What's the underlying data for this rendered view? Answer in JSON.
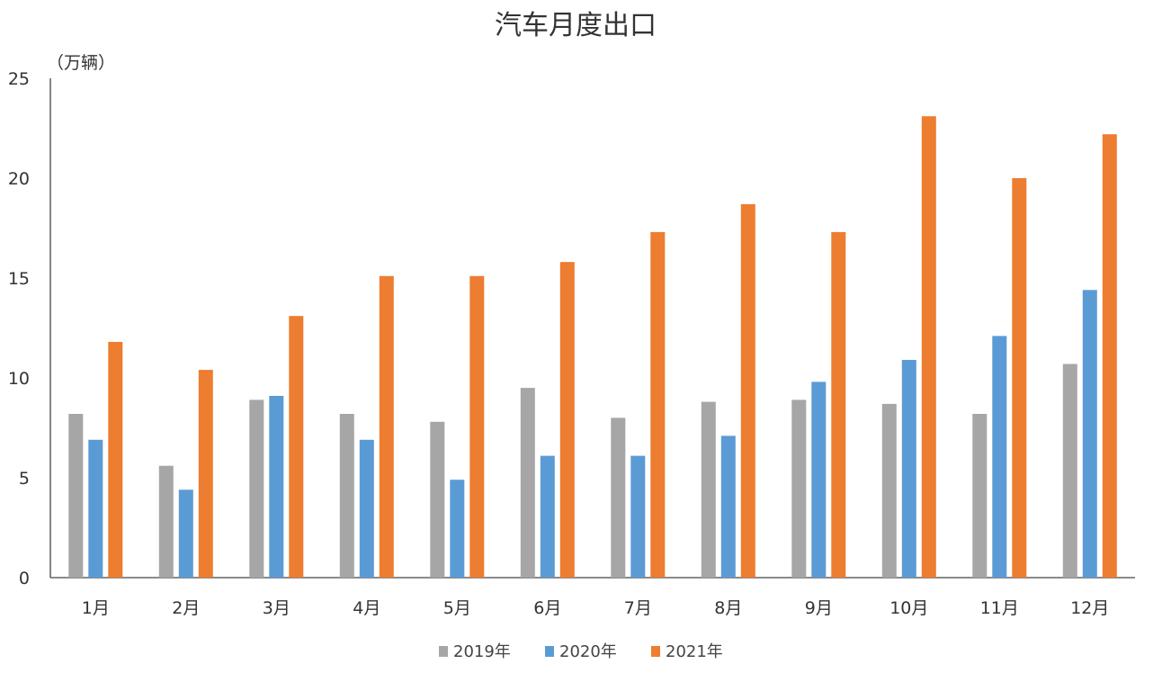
{
  "chart_data": {
    "type": "bar",
    "title": "汽车月度出口",
    "unit_label": "（万辆）",
    "xlabel": "",
    "ylabel": "",
    "categories": [
      "1月",
      "2月",
      "3月",
      "4月",
      "5月",
      "6月",
      "7月",
      "8月",
      "9月",
      "10月",
      "11月",
      "12月"
    ],
    "ylim": [
      0,
      25
    ],
    "yticks": [
      0,
      5,
      10,
      15,
      20,
      25
    ],
    "grid": false,
    "legend_position": "bottom-center",
    "series": [
      {
        "name": "2019年",
        "color": "#a6a6a6",
        "values": [
          8.2,
          5.6,
          8.9,
          8.2,
          7.8,
          9.5,
          8.0,
          8.8,
          8.9,
          8.7,
          8.2,
          10.7
        ]
      },
      {
        "name": "2020年",
        "color": "#5b9bd5",
        "values": [
          6.9,
          4.4,
          9.1,
          6.9,
          4.9,
          6.1,
          6.1,
          7.1,
          9.8,
          10.9,
          12.1,
          14.4
        ]
      },
      {
        "name": "2021年",
        "color": "#ed7d31",
        "values": [
          11.8,
          10.4,
          13.1,
          15.1,
          15.1,
          15.8,
          17.3,
          18.7,
          17.3,
          23.1,
          20.0,
          22.2
        ]
      }
    ]
  }
}
